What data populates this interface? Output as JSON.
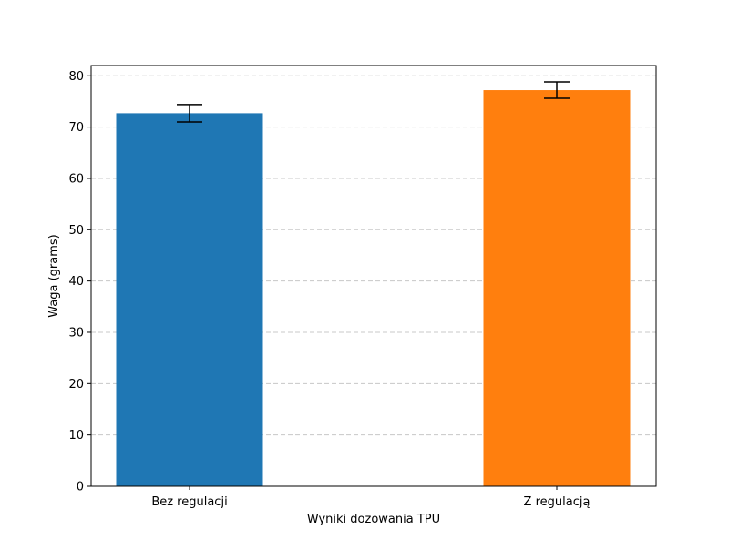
{
  "chart_data": {
    "type": "bar",
    "title": "",
    "xlabel": "Wyniki dozowania TPU",
    "ylabel": "Waga (grams)",
    "categories": [
      "Bez regulacji",
      "Z regulacją"
    ],
    "values": [
      72.7,
      77.2
    ],
    "errors": [
      1.7,
      1.6
    ],
    "colors": [
      "#1f77b4",
      "#ff7f0e"
    ],
    "ylim": [
      0,
      82
    ],
    "yticks": [
      0,
      10,
      20,
      30,
      40,
      50,
      60,
      70,
      80
    ],
    "grid": "y-dashed",
    "legend": "none"
  }
}
